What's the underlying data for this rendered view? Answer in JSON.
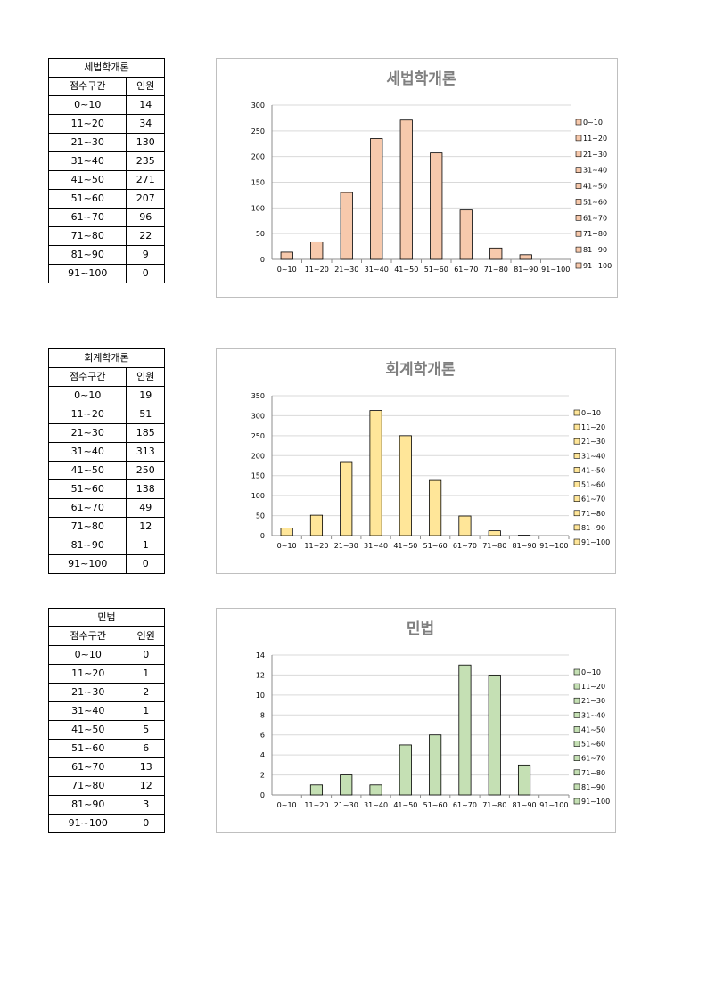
{
  "columns": [
    "점수구간",
    "인원"
  ],
  "blocks": [
    {
      "table_title": "세법학개론",
      "fill": "#f7c9ac",
      "chart_data": {
        "type": "bar",
        "title": "세법학개론",
        "categories": [
          "0~10",
          "11~20",
          "21~30",
          "31~40",
          "41~50",
          "51~60",
          "61~70",
          "71~80",
          "81~90",
          "91~100"
        ],
        "values": [
          14,
          34,
          130,
          235,
          271,
          207,
          96,
          22,
          9,
          0
        ],
        "ylim": [
          0,
          300
        ],
        "yticks": [
          0,
          50,
          100,
          150,
          200,
          250,
          300
        ],
        "legend": "right",
        "grid": true
      }
    },
    {
      "table_title": "회계학개론",
      "fill": "#ffe699",
      "chart_data": {
        "type": "bar",
        "title": "회계학개론",
        "categories": [
          "0~10",
          "11~20",
          "21~30",
          "31~40",
          "41~50",
          "51~60",
          "61~70",
          "71~80",
          "81~90",
          "91~100"
        ],
        "values": [
          19,
          51,
          185,
          313,
          250,
          138,
          49,
          12,
          1,
          0
        ],
        "ylim": [
          0,
          350
        ],
        "yticks": [
          0,
          50,
          100,
          150,
          200,
          250,
          300,
          350
        ],
        "legend": "right",
        "grid": true
      }
    },
    {
      "table_title": "민법",
      "fill": "#c5e0b4",
      "chart_data": {
        "type": "bar",
        "title": "민법",
        "categories": [
          "0~10",
          "11~20",
          "21~30",
          "31~40",
          "41~50",
          "51~60",
          "61~70",
          "71~80",
          "81~90",
          "91~100"
        ],
        "values": [
          0,
          1,
          2,
          1,
          5,
          6,
          13,
          12,
          3,
          0
        ],
        "ylim": [
          0,
          14
        ],
        "yticks": [
          0,
          2,
          4,
          6,
          8,
          10,
          12,
          14
        ],
        "legend": "right",
        "grid": true
      }
    }
  ]
}
